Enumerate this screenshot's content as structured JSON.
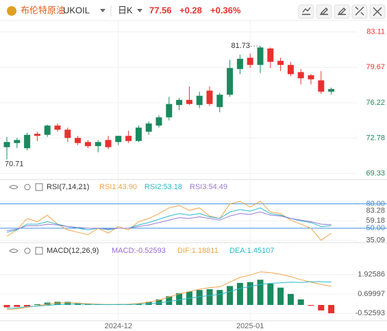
{
  "header": {
    "name": "布伦特原油",
    "symbol": "UKOIL",
    "period": "日K",
    "price": 77.56,
    "change": "+0.28",
    "change_pct": "+0.36%"
  },
  "chart_data": [
    {
      "type": "candlestick",
      "categories": [
        null,
        null,
        null,
        null,
        null,
        null,
        null,
        null,
        null,
        null,
        null,
        "2024-12",
        null,
        null,
        null,
        null,
        null,
        null,
        null,
        null,
        null,
        null,
        null,
        null,
        "2025-01",
        null,
        null,
        null,
        null,
        null,
        null,
        null,
        null
      ],
      "open": [
        71.9,
        72.3,
        71.8,
        73.2,
        73.1,
        74.0,
        73.6,
        72.8,
        72.4,
        72.0,
        72.6,
        72.4,
        73.0,
        72.5,
        73.4,
        74.0,
        74.8,
        76.0,
        76.5,
        76.0,
        77.4,
        75.8,
        77.0,
        79.5,
        80.6,
        79.9,
        81.5,
        80.3,
        79.9,
        79.2,
        78.9,
        78.4,
        77.3
      ],
      "high": [
        72.9,
        72.8,
        73.3,
        73.4,
        74.1,
        74.2,
        73.8,
        73.0,
        72.6,
        72.6,
        73.0,
        73.0,
        73.5,
        74.0,
        74.4,
        75.0,
        76.8,
        76.7,
        77.8,
        77.3,
        77.8,
        77.2,
        80.4,
        80.9,
        81.0,
        81.73,
        81.6,
        80.6,
        80.2,
        79.5,
        79.0,
        79.3,
        77.7
      ],
      "low": [
        70.71,
        71.8,
        71.6,
        72.5,
        72.9,
        73.4,
        72.4,
        72.1,
        71.8,
        71.4,
        71.7,
        72.1,
        72.3,
        72.4,
        73.1,
        73.8,
        74.5,
        75.5,
        76.0,
        75.7,
        75.9,
        75.3,
        76.8,
        79.0,
        79.6,
        79.1,
        79.6,
        79.3,
        78.8,
        78.0,
        78.0,
        77.1,
        77.0
      ],
      "close": [
        72.4,
        72.6,
        73.1,
        73.0,
        74.0,
        73.6,
        72.8,
        72.3,
        72.0,
        72.4,
        71.9,
        73.0,
        72.5,
        73.8,
        74.2,
        74.8,
        76.1,
        76.5,
        76.1,
        76.9,
        76.1,
        77.0,
        79.6,
        80.5,
        79.9,
        81.6,
        80.2,
        79.9,
        79.0,
        78.6,
        78.5,
        77.3,
        77.56
      ],
      "up_color": "#1b8a5e",
      "down_color": "#e8312f",
      "ylim": [
        68.75,
        83.95
      ],
      "yticks": [
        83.11,
        79.67,
        76.22,
        72.78,
        69.33
      ],
      "mark_extremes": true
    },
    {
      "type": "line",
      "title": "RSI(7,14,21)",
      "series": [
        {
          "name": "RSI1:43.90",
          "color": "#f2a348",
          "values": [
            40,
            48,
            62,
            58,
            66,
            55,
            48,
            45,
            42,
            50,
            44,
            52,
            48,
            58,
            62,
            68,
            75,
            78,
            72,
            75,
            65,
            62,
            80,
            83,
            76,
            83.28,
            70,
            68,
            60,
            55,
            50,
            35.09,
            43.9
          ]
        },
        {
          "name": "RSI2:53.18",
          "color": "#2bb8c9",
          "values": [
            45,
            48,
            55,
            55,
            58,
            55,
            52,
            50,
            48,
            50,
            48,
            50,
            50,
            54,
            57,
            61,
            65,
            68,
            66,
            68,
            64,
            62,
            70,
            73,
            71,
            75,
            68,
            66,
            62,
            59,
            57,
            52,
            53.18
          ]
        },
        {
          "name": "RSI3:54.49",
          "color": "#9a7ad4",
          "values": [
            47,
            49,
            53,
            53,
            55,
            54,
            52,
            51,
            50,
            50,
            49,
            50,
            50,
            52,
            54,
            57,
            60,
            63,
            62,
            64,
            62,
            60,
            65,
            68,
            67,
            70,
            66,
            65,
            62,
            60,
            58,
            55,
            54.49
          ]
        }
      ],
      "ylim": [
        34,
        93
      ],
      "yticks": [
        {
          "value": 80,
          "label": "80.00"
        },
        83.28,
        59.18,
        {
          "value": 50,
          "label": "50.00"
        },
        35.09
      ],
      "levels": [
        80,
        50
      ],
      "level_color": "#3d8fe0"
    },
    {
      "type": "macd",
      "title": "MACD(12,26,9)",
      "series": [
        {
          "name": "MACD:-0.52593",
          "type": "bar",
          "color": "#9a6ad6",
          "values": [
            -0.15,
            -0.12,
            -0.1,
            0.05,
            0.15,
            0.2,
            0.2,
            0.12,
            0.08,
            0.05,
            0.03,
            0.02,
            0.05,
            0.1,
            0.2,
            0.35,
            0.55,
            0.75,
            0.85,
            0.95,
            1.0,
            0.95,
            1.2,
            1.4,
            1.45,
            1.6,
            1.35,
            1.1,
            0.7,
            0.35,
            -0.05,
            -0.35,
            -0.52593
          ]
        },
        {
          "name": "DIF:1.18811",
          "color": "#f2a348",
          "values": [
            -0.3,
            -0.25,
            -0.15,
            -0.05,
            0.05,
            0.12,
            0.15,
            0.12,
            0.08,
            0.05,
            0.03,
            0.04,
            0.05,
            0.1,
            0.18,
            0.3,
            0.5,
            0.7,
            0.85,
            1.0,
            1.1,
            1.15,
            1.45,
            1.75,
            1.9,
            2.1,
            2.05,
            1.95,
            1.8,
            1.6,
            1.45,
            1.3,
            1.18811
          ]
        },
        {
          "name": "DEA:1.45107",
          "color": "#2bb8c9",
          "values": [
            -0.225,
            -0.19,
            -0.1,
            -0.075,
            -0.025,
            0.02,
            0.05,
            0.06,
            0.04,
            0.025,
            0.015,
            0.03,
            0.025,
            0.05,
            0.08,
            0.125,
            0.225,
            0.325,
            0.425,
            0.525,
            0.6,
            0.675,
            0.85,
            1.05,
            1.175,
            1.3,
            1.375,
            1.4,
            1.45,
            1.425,
            1.475,
            1.475,
            1.45107
          ]
        }
      ],
      "up_color": "#1b8a5e",
      "down_color": "#e8312f",
      "ylim": [
        -1.0,
        3.0
      ],
      "yticks": [
        1.92586,
        0.69997,
        -0.52593
      ]
    }
  ]
}
